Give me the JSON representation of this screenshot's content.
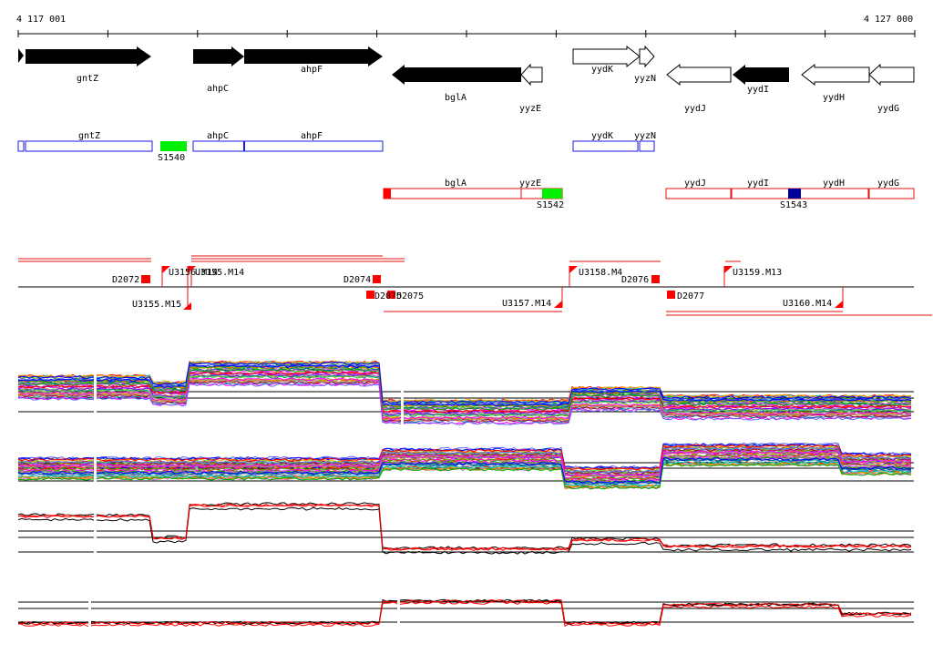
{
  "ruler": {
    "start_label": "4 117 001",
    "end_label": "4 127 000"
  },
  "genes": [
    {
      "name": "gntZ",
      "strand": "+",
      "fill": "black"
    },
    {
      "name": "ahpC",
      "strand": "+",
      "fill": "black"
    },
    {
      "name": "ahpF",
      "strand": "+",
      "fill": "black"
    },
    {
      "name": "bglA",
      "strand": "-",
      "fill": "black"
    },
    {
      "name": "yyzE",
      "strand": "-",
      "fill": "white"
    },
    {
      "name": "yydK",
      "strand": "+",
      "fill": "white"
    },
    {
      "name": "yyzN",
      "strand": "+",
      "fill": "white"
    },
    {
      "name": "yydJ",
      "strand": "-",
      "fill": "white"
    },
    {
      "name": "yydI",
      "strand": "-",
      "fill": "black"
    },
    {
      "name": "yydH",
      "strand": "-",
      "fill": "white"
    },
    {
      "name": "yydG",
      "strand": "-",
      "fill": "white"
    }
  ],
  "operon_labels": {
    "blue": [
      "gntZ",
      "ahpC",
      "ahpF",
      "yydK",
      "yyzN"
    ],
    "red": [
      "bglA",
      "yyzE",
      "yydJ",
      "yydI",
      "yydH",
      "yydG"
    ]
  },
  "segments": [
    {
      "label": "S1540",
      "color": "#00ee00"
    },
    {
      "label": "S1542",
      "color": "#00ee00"
    },
    {
      "label": "S1543",
      "color": "#000099"
    }
  ],
  "transcription_units": [
    "D2072",
    "U3155.M15",
    "U3156.M14",
    "U3155.M14",
    "D2074",
    "D2075",
    "D2075",
    "U3157.M14",
    "U3158.M4",
    "D2076",
    "D2077",
    "U3159.M13",
    "U3160.M14"
  ],
  "colors": {
    "gene_fill": "#000000",
    "blue_outline": "#1a1ae0",
    "red_outline": "#e01010",
    "marker": "#ff0000"
  }
}
